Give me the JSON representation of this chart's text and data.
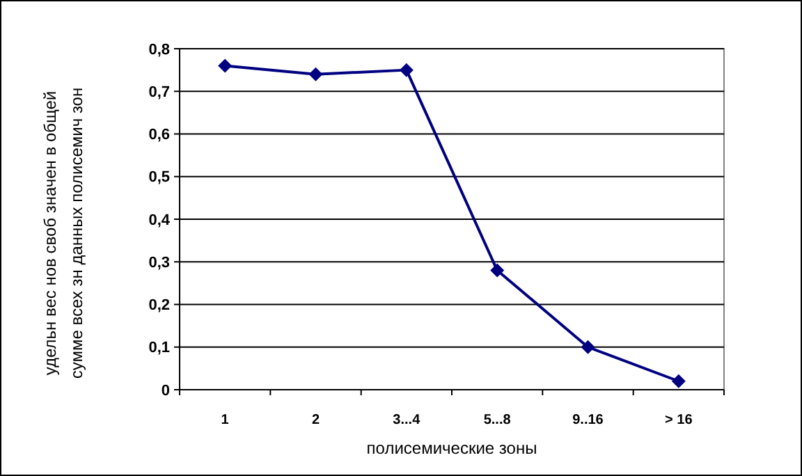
{
  "chart_data": {
    "type": "line",
    "xlabel": "полисемические зоны",
    "ylabel": "удельн вес нов своб значен в общей\nсумме всех зн данных полисемич зон",
    "categories": [
      "1",
      "2",
      "3...4",
      "5...8",
      "9..16",
      "> 16"
    ],
    "series": [
      {
        "color": "#000080",
        "values": [
          0.76,
          0.74,
          0.75,
          0.28,
          0.1,
          0.02
        ]
      }
    ],
    "ylim": [
      0,
      0.8
    ],
    "yticks": [
      {
        "value": 0,
        "label": "0"
      },
      {
        "value": 0.1,
        "label": "0,1"
      },
      {
        "value": 0.2,
        "label": "0,2"
      },
      {
        "value": 0.3,
        "label": "0,3"
      },
      {
        "value": 0.4,
        "label": "0,4"
      },
      {
        "value": 0.5,
        "label": "0,5"
      },
      {
        "value": 0.6,
        "label": "0,6"
      },
      {
        "value": 0.7,
        "label": "0,7"
      },
      {
        "value": 0.8,
        "label": "0,8"
      }
    ],
    "grid": "y",
    "marker": "diamond",
    "line_style": "solid"
  }
}
